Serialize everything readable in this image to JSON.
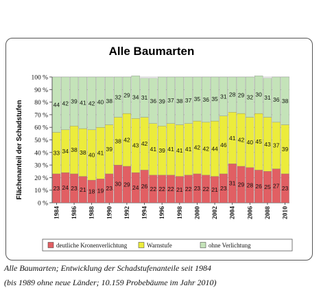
{
  "chart_data": {
    "type": "bar",
    "stacked": true,
    "title": "Alle Baumarten",
    "ylabel": "Flächenanteil der Schadstufen",
    "xlabel": "",
    "ylim": [
      0,
      100
    ],
    "yticks": [
      "0 %",
      "10 %",
      "20 %",
      "30 %",
      "40 %",
      "50 %",
      "60 %",
      "70 %",
      "80 %",
      "90 %",
      "100 %"
    ],
    "x_tick_labels": [
      "1984",
      "1986",
      "1988",
      "1990",
      "1992",
      "1994",
      "1996",
      "1998",
      "2000",
      "2002",
      "2004",
      "2006",
      "2008",
      "2010"
    ],
    "categories": [
      "1984",
      "1985",
      "1986",
      "1987",
      "1988",
      "1989",
      "1990",
      "1991",
      "1992",
      "1993",
      "1994",
      "1995",
      "1996",
      "1997",
      "1998",
      "1999",
      "2000",
      "2001",
      "2002",
      "2003",
      "2004",
      "2005",
      "2006",
      "2007",
      "2008",
      "2009",
      "2010"
    ],
    "grid": true,
    "legend_position": "bottom",
    "series": [
      {
        "name": "deutliche Kronenverlichtung",
        "color": "#e15f63",
        "values": [
          23,
          24,
          23,
          21,
          18,
          19,
          23,
          30,
          29,
          24,
          26,
          22,
          22,
          22,
          21,
          22,
          23,
          22,
          21,
          23,
          31,
          29,
          28,
          26,
          25,
          27,
          23
        ]
      },
      {
        "name": "Warnstufe",
        "color": "#ecec3c",
        "values": [
          33,
          34,
          38,
          38,
          40,
          41,
          39,
          38,
          42,
          43,
          42,
          41,
          39,
          41,
          41,
          41,
          42,
          42,
          44,
          46,
          41,
          42,
          40,
          45,
          43,
          37,
          39
        ]
      },
      {
        "name": "ohne Verlichtung",
        "color": "#c4e3b9",
        "values": [
          44,
          42,
          39,
          41,
          42,
          40,
          38,
          32,
          29,
          34,
          31,
          36,
          39,
          37,
          38,
          37,
          35,
          36,
          35,
          31,
          28,
          29,
          32,
          30,
          31,
          36,
          38
        ]
      }
    ]
  },
  "caption": {
    "line1": "Alle Baumarten; Entwicklung der Schadstufenanteile seit 1984",
    "line2": "(bis 1989 ohne neue Länder; 10.159 Probebäume im Jahr 2010)"
  }
}
